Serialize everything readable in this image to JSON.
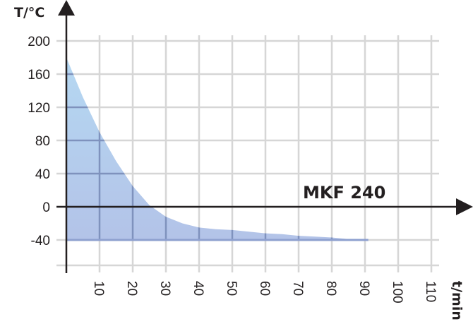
{
  "chart_data": {
    "type": "area",
    "title": "",
    "xlabel": "t/min",
    "ylabel": "T/°C",
    "series_label": "MKF 240",
    "x_ticks": [
      10,
      20,
      30,
      40,
      50,
      60,
      70,
      80,
      90,
      100,
      110
    ],
    "y_ticks": [
      200,
      160,
      120,
      80,
      40,
      0,
      -40
    ],
    "xlim": [
      0,
      112
    ],
    "ylim": [
      -70,
      210
    ],
    "grid": true,
    "legend": "none",
    "series": [
      {
        "name": "MKF 240",
        "baseline": -40,
        "x": [
          0,
          5,
          10,
          15,
          20,
          25,
          30,
          35,
          40,
          45,
          50,
          55,
          60,
          65,
          70,
          75,
          80,
          85,
          91
        ],
        "values": [
          180,
          132,
          90,
          55,
          25,
          2,
          -12,
          -20,
          -25,
          -27,
          -28,
          -30,
          -32,
          -33,
          -35,
          -36,
          -37,
          -39,
          -40
        ]
      }
    ]
  },
  "colors": {
    "axis": "#231f20",
    "grid": "#d6d6d6",
    "fill_top": "#b5d8f2",
    "fill_bottom": "#b3c3e8",
    "grid_over_fill": "#7f92bd",
    "baseline": "#8ea0cf"
  }
}
